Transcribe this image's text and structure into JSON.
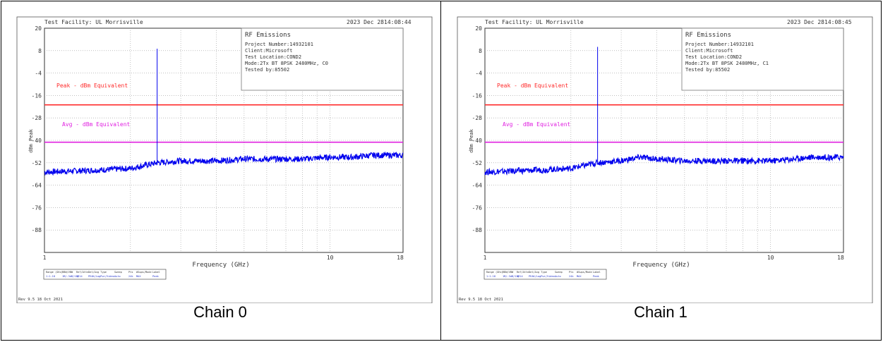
{
  "charts": [
    {
      "caption": "Chain 0",
      "header_left": "Test Facility:  UL Morrisville",
      "header_date": "2023 Dec 28",
      "header_time": "14:08:44",
      "info_title": "RF Emissions",
      "info_lines": [
        "Project Number:14932101",
        "Client:Microsoft",
        "Test Location:COND2",
        "Mode:2Tx BT 8PSK 2480MHz, C0",
        "Tested by:85502"
      ],
      "ylabel": "dBm Peak",
      "xlabel": "Frequency (GHz)",
      "yticks": [
        "20",
        "8",
        "-4",
        "-16",
        "-28",
        "-40",
        "-52",
        "-64",
        "-76",
        "-88"
      ],
      "xticks": [
        "1",
        "10",
        "18"
      ],
      "peak_label": "Peak - dBm Equivalent",
      "avg_label": "Avg - dBm Equivalent",
      "table_headers": [
        "Range (GHz)",
        "RBW/VBW",
        "Ref/Attn",
        "Det/Avg Type",
        "Sweep",
        "Pts",
        "#Swps/Mode",
        "Label"
      ],
      "table_values": [
        "1:1-18",
        "1M/-3dB/13B",
        "4/14",
        "PEAK/LogPwr/Video",
        "Auto",
        "24k",
        "MAX",
        "Peak"
      ],
      "footer": "Rev 9.5 18 Oct 2021"
    },
    {
      "caption": "Chain 1",
      "header_left": "Test Facility:  UL Morrisville",
      "header_date": "2023 Dec 28",
      "header_time": "14:08:45",
      "info_title": "RF Emissions",
      "info_lines": [
        "Project Number:14932101",
        "Client:Microsoft",
        "Test Location:COND2",
        "Mode:2Tx BT 8PSK 2480MHz, C1",
        "Tested by:85502"
      ],
      "ylabel": "dBm Peak",
      "xlabel": "Frequency (GHz)",
      "yticks": [
        "20",
        "8",
        "-4",
        "-16",
        "-28",
        "-40",
        "-52",
        "-64",
        "-76",
        "-88"
      ],
      "xticks": [
        "1",
        "10",
        "18"
      ],
      "peak_label": "Peak - dBm Equivalent",
      "avg_label": "Avg - dBm Equivalent",
      "table_headers": [
        "Range (GHz)",
        "RBW/VBW",
        "Ref/Attn",
        "Det/Avg Type",
        "Sweep",
        "Pts",
        "#Swps/Mode",
        "Label"
      ],
      "table_values": [
        "1:1-18",
        "1M/-3dB/13B",
        "4/14",
        "PEAK/LogPwr/Video",
        "Auto",
        "24k",
        "MAX",
        "Peak"
      ],
      "footer": "Rev 9.5 18 Oct 2021"
    }
  ],
  "chart_data": [
    {
      "type": "line",
      "xscale": "log",
      "xlim": [
        1,
        18
      ],
      "ylim": [
        -100,
        20
      ],
      "grid": true,
      "limit_lines": [
        {
          "name": "Peak - dBm Equivalent",
          "value": -21,
          "color": "#ff2a2a"
        },
        {
          "name": "Avg - dBm Equivalent",
          "value": -41,
          "color": "#e020e0"
        }
      ],
      "spike": {
        "x": 2.48,
        "y": 9
      },
      "noise_floor": [
        [
          1,
          -57
        ],
        [
          1.5,
          -56
        ],
        [
          2,
          -55
        ],
        [
          2.48,
          -52
        ],
        [
          3,
          -51
        ],
        [
          4,
          -51
        ],
        [
          5,
          -50
        ],
        [
          6,
          -50
        ],
        [
          8,
          -50
        ],
        [
          10,
          -49
        ],
        [
          12,
          -49
        ],
        [
          14,
          -48
        ],
        [
          18,
          -48
        ]
      ],
      "trace_color": "#0000ee"
    },
    {
      "type": "line",
      "xscale": "log",
      "xlim": [
        1,
        18
      ],
      "ylim": [
        -100,
        20
      ],
      "grid": true,
      "limit_lines": [
        {
          "name": "Peak - dBm Equivalent",
          "value": -21,
          "color": "#ff2a2a"
        },
        {
          "name": "Avg - dBm Equivalent",
          "value": -41,
          "color": "#e020e0"
        }
      ],
      "spike": {
        "x": 2.48,
        "y": 10
      },
      "noise_floor": [
        [
          1,
          -57
        ],
        [
          1.5,
          -56
        ],
        [
          2,
          -55
        ],
        [
          2.48,
          -52
        ],
        [
          3,
          -51
        ],
        [
          3.5,
          -49
        ],
        [
          4,
          -50
        ],
        [
          5,
          -51
        ],
        [
          6,
          -51
        ],
        [
          8,
          -51
        ],
        [
          10,
          -51
        ],
        [
          12,
          -50
        ],
        [
          14,
          -49
        ],
        [
          18,
          -49
        ]
      ],
      "trace_color": "#0000ee"
    }
  ]
}
